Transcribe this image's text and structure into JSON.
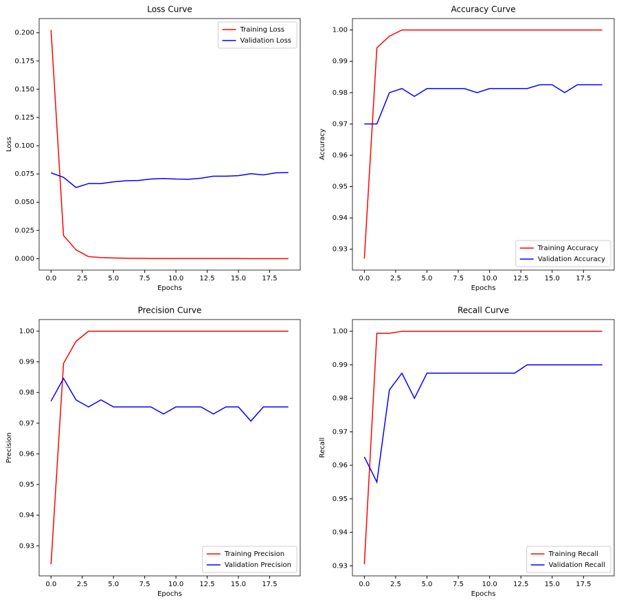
{
  "chart_data": [
    {
      "type": "line",
      "title": "Loss Curve",
      "x_label": "Epochs",
      "y_label": "Loss",
      "legend": "upper right",
      "x": [
        0,
        1,
        2,
        3,
        4,
        5,
        6,
        7,
        8,
        9,
        10,
        11,
        12,
        13,
        14,
        15,
        16,
        17,
        18,
        19
      ],
      "series": [
        {
          "name": "Training Loss",
          "color": "#ff0000",
          "values": [
            0.2025,
            0.0205,
            0.0078,
            0.0018,
            0.001,
            0.0006,
            0.0004,
            0.0003,
            0.0002,
            0.0002,
            0.0001,
            0.0001,
            0.0001,
            0.0001,
            0.0001,
            0.0001,
            0,
            0,
            0,
            0
          ]
        },
        {
          "name": "Validation Loss",
          "color": "#0000ff",
          "values": [
            0.076,
            0.072,
            0.063,
            0.0665,
            0.0665,
            0.068,
            0.069,
            0.0692,
            0.0705,
            0.071,
            0.0705,
            0.0703,
            0.0712,
            0.073,
            0.073,
            0.0735,
            0.0752,
            0.0742,
            0.076,
            0.0762
          ]
        }
      ],
      "xlim": [
        -0.95,
        19.95
      ],
      "xticks": [
        {
          "value": 0,
          "label": "0.0"
        },
        2.5,
        {
          "value": 5,
          "label": "5.0"
        },
        7.5,
        {
          "value": 10,
          "label": "10.0"
        },
        12.5,
        {
          "value": 15,
          "label": "15.0"
        },
        17.5
      ],
      "ylim": [
        -0.0101,
        0.2126
      ],
      "yticks": [
        {
          "value": 0,
          "label": "0.000"
        },
        {
          "value": 0.025,
          "label": "0.025"
        },
        {
          "value": 0.05,
          "label": "0.050"
        },
        {
          "value": 0.075,
          "label": "0.075"
        },
        {
          "value": 0.1,
          "label": "0.100"
        },
        {
          "value": 0.125,
          "label": "0.125"
        },
        {
          "value": 0.15,
          "label": "0.150"
        },
        {
          "value": 0.175,
          "label": "0.175"
        },
        {
          "value": 0.2,
          "label": "0.200"
        }
      ]
    },
    {
      "type": "line",
      "title": "Accuracy Curve",
      "x_label": "Epochs",
      "y_label": "Accuracy",
      "legend": "lower right",
      "x": [
        0,
        1,
        2,
        3,
        4,
        5,
        6,
        7,
        8,
        9,
        10,
        11,
        12,
        13,
        14,
        15,
        16,
        17,
        18,
        19
      ],
      "series": [
        {
          "name": "Training Accuracy",
          "color": "#ff0000",
          "values": [
            0.927,
            0.9943,
            0.998,
            1,
            1,
            1,
            1,
            1,
            1,
            1,
            1,
            1,
            1,
            1,
            1,
            1,
            1,
            1,
            1,
            1
          ]
        },
        {
          "name": "Validation Accuracy",
          "color": "#0000ff",
          "values": [
            0.97,
            0.97,
            0.98,
            0.9813,
            0.9788,
            0.9813,
            0.9813,
            0.9813,
            0.9813,
            0.98,
            0.9813,
            0.9813,
            0.9813,
            0.9813,
            0.9825,
            0.9825,
            0.98,
            0.9825,
            0.9825,
            0.9825
          ]
        }
      ],
      "xlim": [
        -0.95,
        19.95
      ],
      "xticks": [
        {
          "value": 0,
          "label": "0.0"
        },
        2.5,
        {
          "value": 5,
          "label": "5.0"
        },
        7.5,
        {
          "value": 10,
          "label": "10.0"
        },
        12.5,
        {
          "value": 15,
          "label": "15.0"
        },
        17.5
      ],
      "ylim": [
        0.92335,
        1.00365
      ],
      "yticks": [
        0.93,
        0.94,
        0.95,
        0.96,
        0.97,
        0.98,
        0.99,
        {
          "value": 1,
          "label": "1.00"
        }
      ]
    },
    {
      "type": "line",
      "title": "Precision Curve",
      "x_label": "Epochs",
      "y_label": "Precision",
      "legend": "lower right",
      "x": [
        0,
        1,
        2,
        3,
        4,
        5,
        6,
        7,
        8,
        9,
        10,
        11,
        12,
        13,
        14,
        15,
        16,
        17,
        18,
        19
      ],
      "series": [
        {
          "name": "Training Precision",
          "color": "#ff0000",
          "values": [
            0.924,
            0.9895,
            0.9967,
            1,
            1,
            1,
            1,
            1,
            1,
            1,
            1,
            1,
            1,
            1,
            1,
            1,
            1,
            1,
            1,
            1
          ]
        },
        {
          "name": "Validation Precision",
          "color": "#0000ff",
          "values": [
            0.9772,
            0.9846,
            0.9776,
            0.9753,
            0.9776,
            0.9753,
            0.9753,
            0.9753,
            0.9753,
            0.973,
            0.9753,
            0.9753,
            0.9753,
            0.973,
            0.9753,
            0.9753,
            0.9707,
            0.9753,
            0.9753,
            0.9753
          ]
        }
      ],
      "xlim": [
        -0.95,
        19.95
      ],
      "xticks": [
        {
          "value": 0,
          "label": "0.0"
        },
        2.5,
        {
          "value": 5,
          "label": "5.0"
        },
        7.5,
        {
          "value": 10,
          "label": "10.0"
        },
        12.5,
        {
          "value": 15,
          "label": "15.0"
        },
        17.5
      ],
      "ylim": [
        0.9202,
        1.0038
      ],
      "yticks": [
        0.93,
        0.94,
        0.95,
        0.96,
        0.97,
        0.98,
        0.99,
        {
          "value": 1,
          "label": "1.00"
        }
      ]
    },
    {
      "type": "line",
      "title": "Recall Curve",
      "x_label": "Epochs",
      "y_label": "Recall",
      "legend": "lower right",
      "x": [
        0,
        1,
        2,
        3,
        4,
        5,
        6,
        7,
        8,
        9,
        10,
        11,
        12,
        13,
        14,
        15,
        16,
        17,
        18,
        19
      ],
      "series": [
        {
          "name": "Training Recall",
          "color": "#ff0000",
          "values": [
            0.9305,
            0.9994,
            0.9994,
            1,
            1,
            1,
            1,
            1,
            1,
            1,
            1,
            1,
            1,
            1,
            1,
            1,
            1,
            1,
            1,
            1
          ]
        },
        {
          "name": "Validation Recall",
          "color": "#0000ff",
          "values": [
            0.9625,
            0.955,
            0.9825,
            0.9875,
            0.98,
            0.9875,
            0.9875,
            0.9875,
            0.9875,
            0.9875,
            0.9875,
            0.9875,
            0.9875,
            0.99,
            0.99,
            0.99,
            0.99,
            0.99,
            0.99,
            0.99
          ]
        }
      ],
      "xlim": [
        -0.95,
        19.95
      ],
      "xticks": [
        {
          "value": 0,
          "label": "0.0"
        },
        2.5,
        {
          "value": 5,
          "label": "5.0"
        },
        7.5,
        {
          "value": 10,
          "label": "10.0"
        },
        12.5,
        {
          "value": 15,
          "label": "15.0"
        },
        17.5
      ],
      "ylim": [
        0.927,
        1.0035
      ],
      "yticks": [
        0.93,
        0.94,
        0.95,
        0.96,
        0.97,
        0.98,
        0.99,
        {
          "value": 1,
          "label": "1.00"
        }
      ]
    }
  ]
}
